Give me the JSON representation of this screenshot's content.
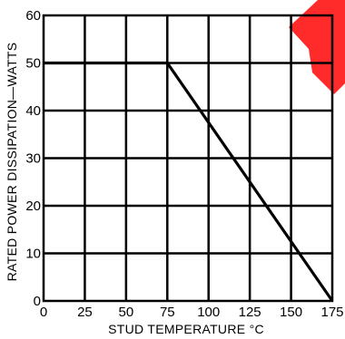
{
  "chart_data": {
    "type": "line",
    "title": "",
    "xlabel": "STUD TEMPERATURE °C",
    "ylabel": "RATED POWER DISSIPATION—WATTS",
    "xlim": [
      0,
      175
    ],
    "ylim": [
      0,
      60
    ],
    "x_ticks": [
      0,
      25,
      50,
      75,
      100,
      125,
      150,
      175
    ],
    "y_ticks": [
      0,
      10,
      20,
      30,
      40,
      50,
      60
    ],
    "x_tick_labels": [
      "0",
      "25",
      "50",
      "75",
      "100",
      "125",
      "150",
      "175"
    ],
    "y_tick_labels": [
      "0",
      "10",
      "20",
      "30",
      "40",
      "50",
      "60"
    ],
    "grid": true,
    "legend": "none",
    "series": [
      {
        "x": [
          0,
          75,
          175
        ],
        "y": [
          50,
          50,
          0
        ],
        "color": "#000000"
      }
    ]
  },
  "colors": {
    "ink": "#000000",
    "background": "#ffffff",
    "corner_mark": "#ff2a2a"
  }
}
